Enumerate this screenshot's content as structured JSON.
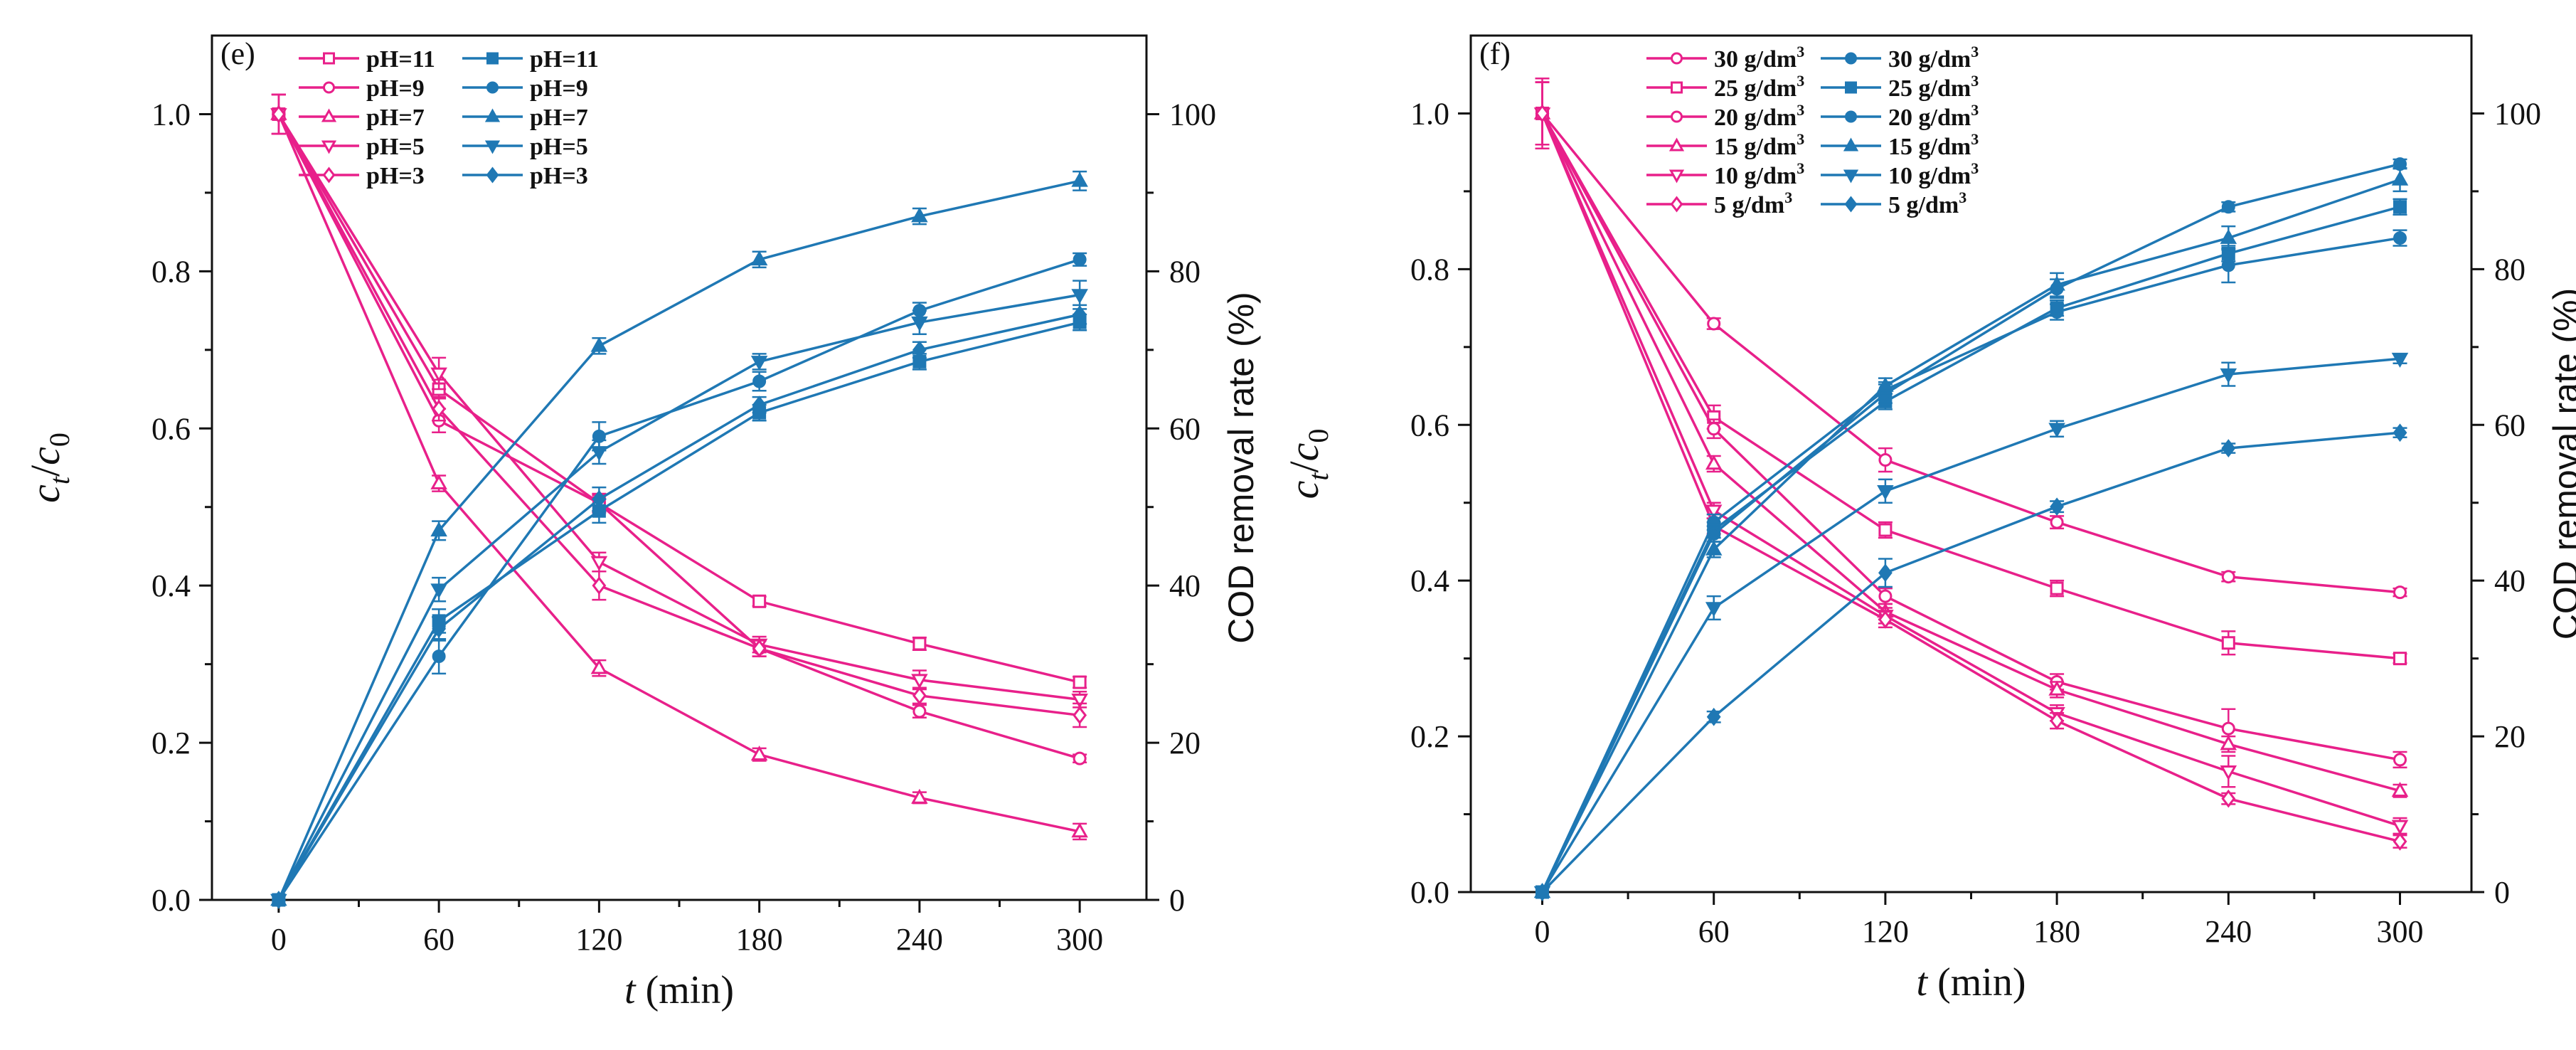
{
  "figure": {
    "colors": {
      "pink": "#e8208a",
      "blue": "#1f78b4",
      "axis": "#111111"
    }
  },
  "chart_data": [
    {
      "panel_label": "(e)",
      "type": "line",
      "x": [
        0,
        60,
        120,
        180,
        240,
        300
      ],
      "xlim": [
        -25,
        325
      ],
      "xticks": [
        0,
        60,
        120,
        180,
        240,
        300
      ],
      "xlabel": {
        "italic": "t",
        "rest": " (min)"
      },
      "ylabel_left": {
        "c": "c",
        "t": "t",
        "slash": "/",
        "c0": "c",
        "zero": "0"
      },
      "ylim_left": [
        0,
        1.1
      ],
      "yticks_left": [
        "0.0",
        "0.2",
        "0.4",
        "0.6",
        "0.8",
        "1.0"
      ],
      "ylabel_right": "COD removal rate (%)",
      "ylim_right": [
        0,
        110
      ],
      "yticks_right": [
        "0",
        "20",
        "40",
        "60",
        "80",
        "100"
      ],
      "series": [
        {
          "name": "pH=11",
          "axis": "left",
          "color": "pink",
          "marker": "open-square",
          "values": [
            1.0,
            0.65,
            0.505,
            0.38,
            0.326,
            0.277
          ],
          "err": [
            0.025,
            0.012,
            0.012,
            0.006,
            0.008,
            0.007
          ]
        },
        {
          "name": "pH=9",
          "axis": "left",
          "color": "pink",
          "marker": "open-circle",
          "values": [
            1.0,
            0.61,
            0.505,
            0.32,
            0.24,
            0.18
          ],
          "err": [
            0.025,
            0.015,
            0.01,
            0.01,
            0.008,
            0.005
          ]
        },
        {
          "name": "pH=7",
          "axis": "left",
          "color": "pink",
          "marker": "open-triangle-up",
          "values": [
            1.0,
            0.53,
            0.295,
            0.185,
            0.13,
            0.087
          ],
          "err": [
            0.025,
            0.01,
            0.01,
            0.008,
            0.007,
            0.01
          ]
        },
        {
          "name": "pH=5",
          "axis": "left",
          "color": "pink",
          "marker": "open-triangle-down",
          "values": [
            1.0,
            0.67,
            0.43,
            0.325,
            0.28,
            0.255
          ],
          "err": [
            0.025,
            0.02,
            0.012,
            0.01,
            0.012,
            0.01
          ]
        },
        {
          "name": "pH=3",
          "axis": "left",
          "color": "pink",
          "marker": "open-diamond",
          "values": [
            1.0,
            0.625,
            0.4,
            0.32,
            0.26,
            0.235
          ],
          "err": [
            0.025,
            0.015,
            0.018,
            0.01,
            0.01,
            0.015
          ]
        },
        {
          "name": "pH=11",
          "axis": "right",
          "color": "blue",
          "marker": "filled-square",
          "values": [
            0,
            35.5,
            49.5,
            62,
            68.5,
            73.5
          ],
          "err": [
            0,
            1.5,
            1.5,
            1,
            1,
            1
          ]
        },
        {
          "name": "pH=9",
          "axis": "right",
          "color": "blue",
          "marker": "filled-circle",
          "values": [
            0,
            31,
            59,
            66,
            75,
            81.5
          ],
          "err": [
            0,
            2.2,
            1.8,
            1.2,
            1,
            0.8
          ]
        },
        {
          "name": "pH=7",
          "axis": "right",
          "color": "blue",
          "marker": "filled-triangle-up",
          "values": [
            0,
            47,
            70.5,
            81.5,
            87,
            91.5
          ],
          "err": [
            0,
            1.2,
            1,
            1,
            1,
            1.2
          ]
        },
        {
          "name": "pH=5",
          "axis": "right",
          "color": "blue",
          "marker": "filled-triangle-down",
          "values": [
            0,
            39.5,
            57,
            68.5,
            73.5,
            77
          ],
          "err": [
            0,
            1.5,
            1.5,
            1,
            1.5,
            1.8
          ]
        },
        {
          "name": "pH=3",
          "axis": "right",
          "color": "blue",
          "marker": "filled-diamond",
          "values": [
            0,
            34.5,
            51,
            63,
            70,
            74.5
          ],
          "err": [
            0,
            1.5,
            1.5,
            1,
            1,
            1.2
          ]
        }
      ]
    },
    {
      "panel_label": "(f)",
      "type": "line",
      "x": [
        0,
        60,
        120,
        180,
        240,
        300
      ],
      "xlim": [
        -25,
        325
      ],
      "xticks": [
        0,
        60,
        120,
        180,
        240,
        300
      ],
      "xlabel": {
        "italic": "t",
        "rest": " (min)"
      },
      "ylabel_left": {
        "c": "c",
        "t": "t",
        "slash": "/",
        "c0": "c",
        "zero": "0"
      },
      "ylim_left": [
        0,
        1.1
      ],
      "yticks_left": [
        "0.0",
        "0.2",
        "0.4",
        "0.6",
        "0.8",
        "1.0"
      ],
      "ylabel_right": "COD removal rate (%)",
      "ylim_right": [
        0,
        110
      ],
      "yticks_right": [
        "0",
        "20",
        "40",
        "60",
        "80",
        "100"
      ],
      "series": [
        {
          "name": "30 g/dm",
          "sup": "3",
          "axis": "left",
          "color": "pink",
          "marker": "open-circle",
          "values": [
            1.0,
            0.73,
            0.555,
            0.475,
            0.405,
            0.385
          ],
          "err": [
            0.045,
            0.007,
            0.015,
            0.008,
            0.006,
            0.005
          ]
        },
        {
          "name": "25 g/dm",
          "sup": "3",
          "axis": "left",
          "color": "pink",
          "marker": "open-square",
          "values": [
            1.0,
            0.61,
            0.465,
            0.39,
            0.32,
            0.3
          ],
          "err": [
            0.04,
            0.015,
            0.01,
            0.01,
            0.015,
            0.006
          ]
        },
        {
          "name": "20 g/dm",
          "sup": "3",
          "axis": "left",
          "color": "pink",
          "marker": "open-circle",
          "values": [
            1.0,
            0.595,
            0.38,
            0.27,
            0.21,
            0.17
          ],
          "err": [
            0.04,
            0.012,
            0.01,
            0.01,
            0.025,
            0.01
          ]
        },
        {
          "name": "15 g/dm",
          "sup": "3",
          "axis": "left",
          "color": "pink",
          "marker": "open-triangle-up",
          "values": [
            1.0,
            0.55,
            0.36,
            0.26,
            0.19,
            0.13
          ],
          "err": [
            0.04,
            0.01,
            0.01,
            0.01,
            0.01,
            0.008
          ]
        },
        {
          "name": "10 g/dm",
          "sup": "3",
          "axis": "left",
          "color": "pink",
          "marker": "open-triangle-down",
          "values": [
            1.0,
            0.49,
            0.355,
            0.23,
            0.155,
            0.085
          ],
          "err": [
            0.04,
            0.01,
            0.01,
            0.01,
            0.02,
            0.01
          ]
        },
        {
          "name": "5 g/dm",
          "sup": "3",
          "axis": "left",
          "color": "pink",
          "marker": "open-diamond",
          "values": [
            1.0,
            0.47,
            0.35,
            0.22,
            0.12,
            0.065
          ],
          "err": [
            0.04,
            0.01,
            0.01,
            0.01,
            0.007,
            0.008
          ]
        },
        {
          "name": "30 g/dm",
          "sup": "3",
          "axis": "right",
          "color": "blue",
          "marker": "filled-circle",
          "values": [
            0,
            47.5,
            64.5,
            74.5,
            80.5,
            84
          ],
          "err": [
            0,
            1,
            1,
            1,
            2.2,
            1
          ]
        },
        {
          "name": "25 g/dm",
          "sup": "3",
          "axis": "right",
          "color": "blue",
          "marker": "filled-square",
          "values": [
            0,
            46.5,
            63,
            75,
            82,
            88
          ],
          "err": [
            0,
            1,
            1,
            1,
            1,
            1
          ]
        },
        {
          "name": "20 g/dm",
          "sup": "3",
          "axis": "right",
          "color": "blue",
          "marker": "filled-circle",
          "values": [
            0,
            46,
            64,
            77.5,
            88,
            93.5
          ],
          "err": [
            0,
            1,
            1.2,
            1.2,
            0.6,
            0.6
          ]
        },
        {
          "name": "15 g/dm",
          "sup": "3",
          "axis": "right",
          "color": "blue",
          "marker": "filled-triangle-up",
          "values": [
            0,
            44,
            65,
            78,
            84,
            91.5
          ],
          "err": [
            0,
            1,
            1,
            1.5,
            1.5,
            1.5
          ]
        },
        {
          "name": "10 g/dm",
          "sup": "3",
          "axis": "right",
          "color": "blue",
          "marker": "filled-triangle-down",
          "values": [
            0,
            36.5,
            51.5,
            59.5,
            66.5,
            68.5
          ],
          "err": [
            0,
            1.5,
            1.5,
            1,
            1.5,
            0.6
          ]
        },
        {
          "name": "5 g/dm",
          "sup": "3",
          "axis": "right",
          "color": "blue",
          "marker": "filled-diamond",
          "values": [
            0,
            22.5,
            41,
            49.5,
            57,
            59
          ],
          "err": [
            0,
            0.7,
            1.8,
            0.7,
            0.6,
            0.6
          ]
        }
      ]
    }
  ]
}
